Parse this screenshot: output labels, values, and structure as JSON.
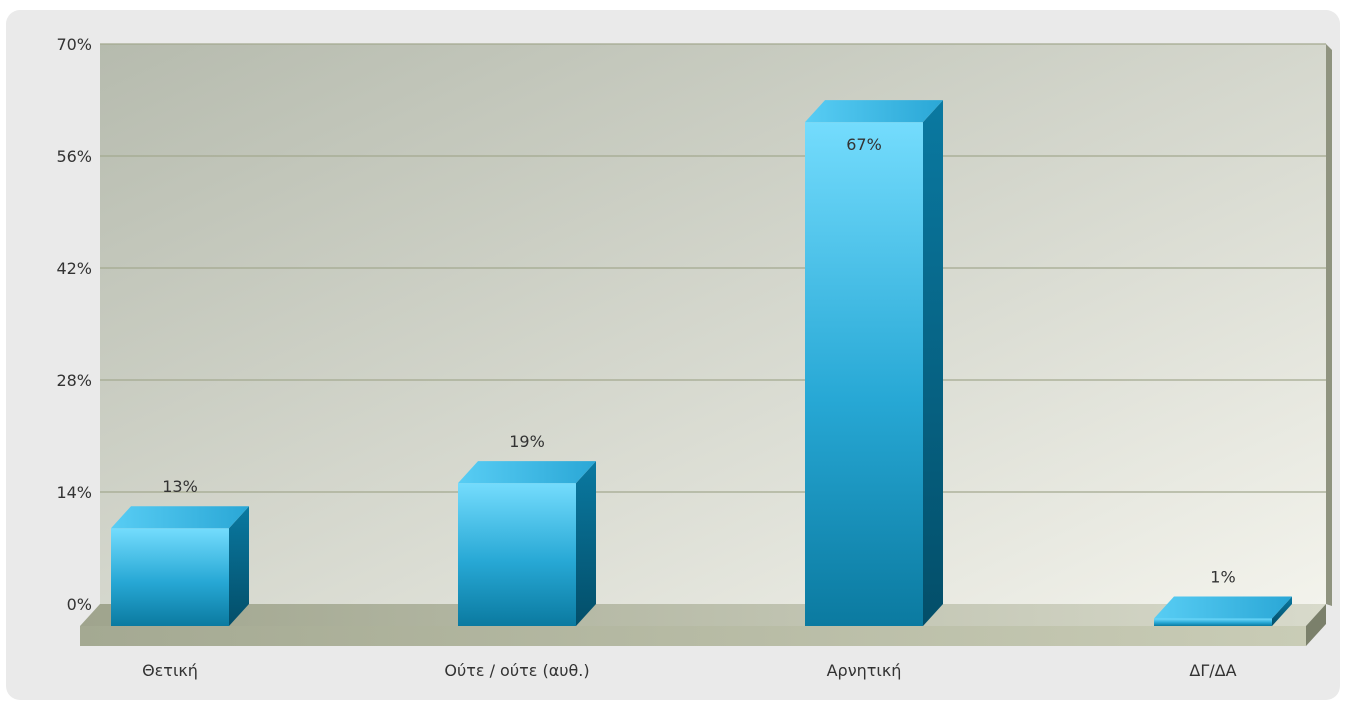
{
  "chart_data": {
    "type": "bar",
    "categories": [
      "Θετική",
      "Ούτε / ούτε (αυθ.)",
      "Αρνητική",
      "ΔΓ/ΔΑ"
    ],
    "values": [
      13,
      19,
      67,
      1
    ],
    "value_labels": [
      "13%",
      "19%",
      "67%",
      "1%"
    ],
    "y_ticks": [
      "0%",
      "14%",
      "28%",
      "42%",
      "56%",
      "70%"
    ],
    "ylim": [
      0,
      70
    ],
    "grid": true,
    "legend": "none",
    "bar_style": "3d",
    "colors": {
      "bar_light": "#6fd8fb",
      "bar_dark": "#0a7da3",
      "bar_side": "#045c7a",
      "bar_top": "#3fb9e3",
      "plot_bg_left": "#b9bdb1",
      "plot_bg_right": "#f2f2ea",
      "grid": "#9ea58a",
      "floor": "#a9ad93"
    }
  }
}
